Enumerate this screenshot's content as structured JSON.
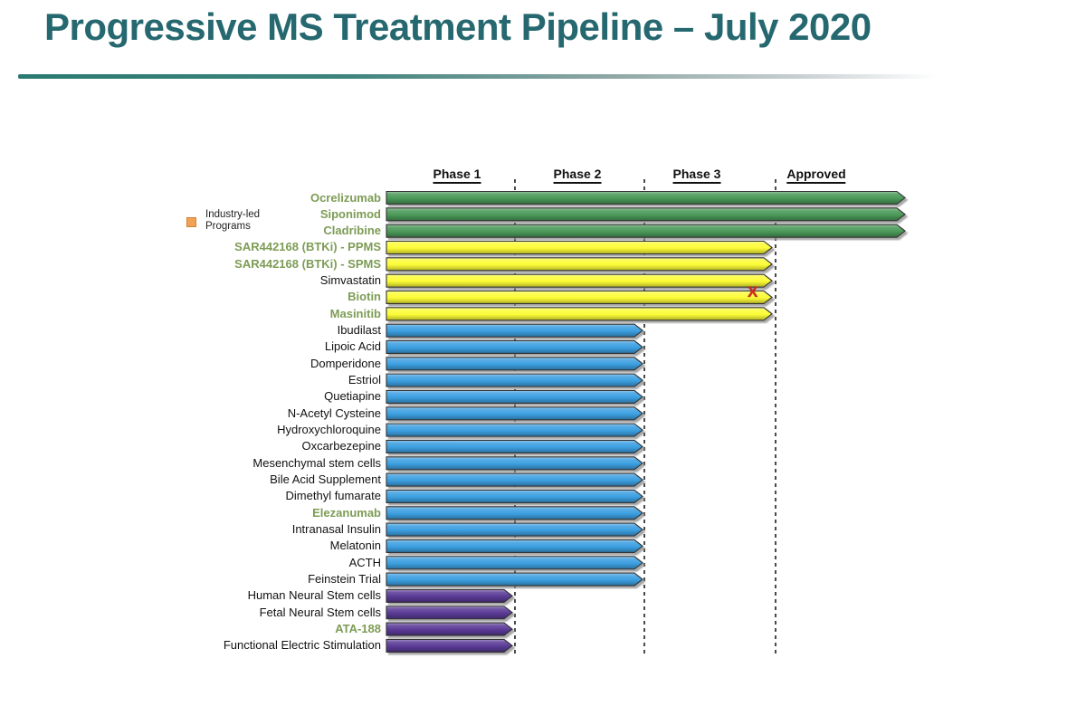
{
  "title": "Progressive MS Treatment Pipeline – July 2020",
  "legend": {
    "line1": "Industry-led",
    "line2": "Programs",
    "swatch_color": "#F2A159"
  },
  "chart_data": {
    "type": "bar",
    "title": "Progressive MS Treatment Pipeline – July 2020",
    "columns": [
      "Phase 1",
      "Phase 2",
      "Phase 3",
      "Approved"
    ],
    "phase_colors": {
      "Phase 1": "#5A3A96",
      "Phase 2": "#3C9FE0",
      "Phase 3": "#FBFB37",
      "Approved": "#4A9958"
    },
    "industry_label_color": "#7D9C55",
    "plain_label_color": "#111111",
    "failed_marker_color": "#D42A1E",
    "rows": [
      {
        "name": "Ocrelizumab",
        "phase": "Approved",
        "industry_led": true
      },
      {
        "name": "Siponimod",
        "phase": "Approved",
        "industry_led": true
      },
      {
        "name": "Cladribine",
        "phase": "Approved",
        "industry_led": true
      },
      {
        "name": "SAR442168 (BTKi) - PPMS",
        "phase": "Phase 3",
        "industry_led": true
      },
      {
        "name": "SAR442168 (BTKi) - SPMS",
        "phase": "Phase 3",
        "industry_led": true
      },
      {
        "name": "Simvastatin",
        "phase": "Phase 3",
        "industry_led": false
      },
      {
        "name": "Biotin",
        "phase": "Phase 3",
        "industry_led": true,
        "marker": "X"
      },
      {
        "name": "Masinitib",
        "phase": "Phase 3",
        "industry_led": true
      },
      {
        "name": "Ibudilast",
        "phase": "Phase 2",
        "industry_led": false
      },
      {
        "name": "Lipoic Acid",
        "phase": "Phase 2",
        "industry_led": false
      },
      {
        "name": "Domperidone",
        "phase": "Phase 2",
        "industry_led": false
      },
      {
        "name": "Estriol",
        "phase": "Phase 2",
        "industry_led": false
      },
      {
        "name": "Quetiapine",
        "phase": "Phase 2",
        "industry_led": false
      },
      {
        "name": "N-Acetyl Cysteine",
        "phase": "Phase 2",
        "industry_led": false
      },
      {
        "name": "Hydroxychloroquine",
        "phase": "Phase 2",
        "industry_led": false
      },
      {
        "name": "Oxcarbezepine",
        "phase": "Phase 2",
        "industry_led": false
      },
      {
        "name": "Mesenchymal stem cells",
        "phase": "Phase 2",
        "industry_led": false
      },
      {
        "name": "Bile Acid Supplement",
        "phase": "Phase 2",
        "industry_led": false
      },
      {
        "name": "Dimethyl fumarate",
        "phase": "Phase 2",
        "industry_led": false
      },
      {
        "name": "Elezanumab",
        "phase": "Phase 2",
        "industry_led": true
      },
      {
        "name": "Intranasal Insulin",
        "phase": "Phase 2",
        "industry_led": false
      },
      {
        "name": "Melatonin",
        "phase": "Phase 2",
        "industry_led": false
      },
      {
        "name": "ACTH",
        "phase": "Phase 2",
        "industry_led": false
      },
      {
        "name": "Feinstein Trial",
        "phase": "Phase 2",
        "industry_led": false
      },
      {
        "name": "Human Neural Stem cells",
        "phase": "Phase 1",
        "industry_led": false
      },
      {
        "name": "Fetal Neural Stem cells",
        "phase": "Phase 1",
        "industry_led": false
      },
      {
        "name": "ATA-188",
        "phase": "Phase 1",
        "industry_led": true
      },
      {
        "name": "Functional Electric Stimulation",
        "phase": "Phase 1",
        "industry_led": false
      }
    ]
  }
}
